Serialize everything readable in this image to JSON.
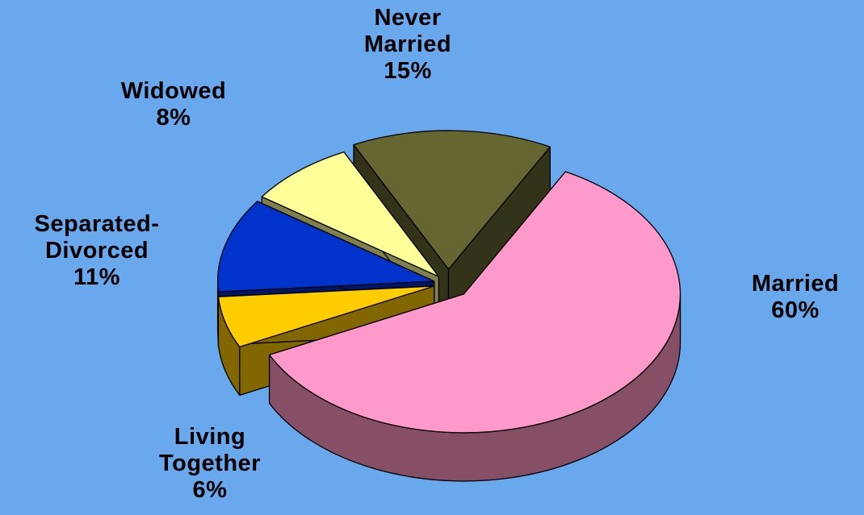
{
  "background_color": "#6aa8ee",
  "chart_data": {
    "type": "pie",
    "style": "3d-exploded",
    "legend": "none",
    "slices": [
      {
        "label_lines": [
          "Married"
        ],
        "value": 60,
        "value_label": "60%",
        "color": "#ff99cc",
        "side_color": "#864f66"
      },
      {
        "label_lines": [
          "Living",
          "Together"
        ],
        "value": 6,
        "value_label": "6%",
        "color": "#ffcc00",
        "side_color": "#826600"
      },
      {
        "label_lines": [
          "Separated-",
          "Divorced"
        ],
        "value": 11,
        "value_label": "11%",
        "color": "#0033cc",
        "side_color": "#001766"
      },
      {
        "label_lines": [
          "Widowed"
        ],
        "value": 8,
        "value_label": "8%",
        "color": "#ffff99",
        "side_color": "#80804c"
      },
      {
        "label_lines": [
          "Never",
          "Married"
        ],
        "value": 15,
        "value_label": "15%",
        "color": "#666633",
        "side_color": "#333319"
      }
    ]
  }
}
